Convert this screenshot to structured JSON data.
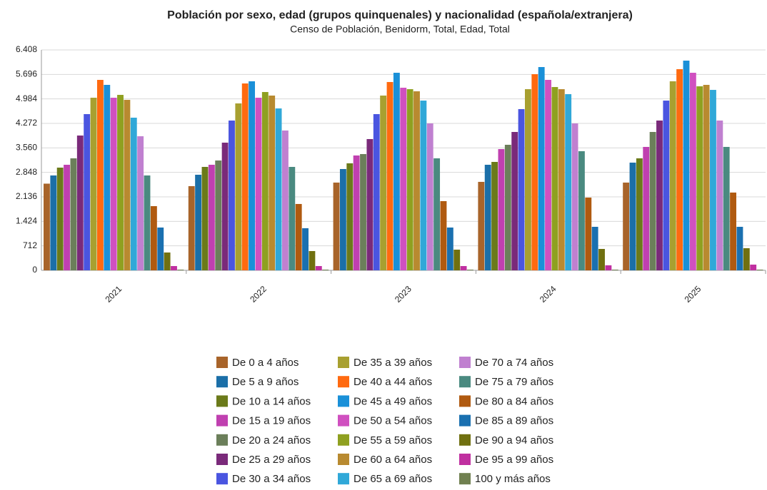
{
  "chart_data": {
    "type": "bar",
    "title": "Población por sexo, edad (grupos quinquenales) y nacionalidad (española/extranjera)",
    "subtitle": "Censo de Población, Benidorm, Total, Edad, Total",
    "categories": [
      "2021",
      "2022",
      "2023",
      "2024",
      "2025"
    ],
    "ylim": [
      0,
      6408
    ],
    "yticks": [
      0,
      712,
      {
        "value": 1424,
        "label": "1.424"
      },
      {
        "value": 2136,
        "label": "2.136"
      },
      {
        "value": 2848,
        "label": "2.848"
      },
      {
        "value": 3560,
        "label": "3.560"
      },
      {
        "value": 4272,
        "label": "4.272"
      },
      {
        "value": 4984,
        "label": "4.984"
      },
      {
        "value": 5696,
        "label": "5.696"
      },
      {
        "value": 6408,
        "label": "6.408"
      }
    ],
    "grid": true,
    "series": [
      {
        "name": "De 0 a 4 años",
        "color": "#a8642a",
        "values": [
          2520,
          2447,
          2551,
          2572,
          2551
        ]
      },
      {
        "name": "De 5 a 9 años",
        "color": "#1b6fa8",
        "values": [
          2758,
          2779,
          2945,
          3069,
          3131
        ]
      },
      {
        "name": "De 10 a 14 años",
        "color": "#6b7a1a",
        "values": [
          2986,
          3007,
          3111,
          3152,
          3256
        ]
      },
      {
        "name": "De 15 a 19 años",
        "color": "#c040b0",
        "values": [
          3069,
          3069,
          3339,
          3525,
          3588
        ]
      },
      {
        "name": "De 20 a 24 años",
        "color": "#6b7f5a",
        "values": [
          3256,
          3193,
          3380,
          3650,
          4023
        ]
      },
      {
        "name": "De 25 a 29 años",
        "color": "#7a2a7a",
        "values": [
          3919,
          3712,
          3816,
          4023,
          4355
        ]
      },
      {
        "name": "De 30 a 34 años",
        "color": "#4a55e0",
        "values": [
          4542,
          4355,
          4542,
          4687,
          4935
        ]
      },
      {
        "name": "De 35 a 39 años",
        "color": "#a8a030",
        "values": [
          5018,
          4853,
          5081,
          5267,
          5496
        ]
      },
      {
        "name": "De 40 a 44 años",
        "color": "#ff6a10",
        "values": [
          5537,
          5433,
          5475,
          5703,
          5848
        ]
      },
      {
        "name": "De 45 a 49 años",
        "color": "#1a90d8",
        "values": [
          5392,
          5496,
          5744,
          5910,
          6097
        ]
      },
      {
        "name": "De 50 a 54 años",
        "color": "#d050c0",
        "values": [
          5018,
          5018,
          5309,
          5537,
          5744
        ]
      },
      {
        "name": "De 55 a 59 años",
        "color": "#8fa020",
        "values": [
          5101,
          5184,
          5267,
          5329,
          5350
        ]
      },
      {
        "name": "De 60 a 64 años",
        "color": "#b88a30",
        "values": [
          4956,
          5081,
          5205,
          5267,
          5392
        ]
      },
      {
        "name": "De 65 a 69 años",
        "color": "#30a8d8",
        "values": [
          4438,
          4707,
          4935,
          5122,
          5246
        ]
      },
      {
        "name": "De 70 a 74 años",
        "color": "#c080d0",
        "values": [
          3898,
          4065,
          4272,
          4272,
          4355
        ]
      },
      {
        "name": "De 75 a 79 años",
        "color": "#4a8a80",
        "values": [
          2758,
          3007,
          3256,
          3463,
          3588
        ]
      },
      {
        "name": "De 80 a 84 años",
        "color": "#b05a10",
        "values": [
          1866,
          1929,
          2012,
          2115,
          2261
        ]
      },
      {
        "name": "De 85 a 89 años",
        "color": "#1a70b0",
        "values": [
          1244,
          1224,
          1244,
          1265,
          1265
        ]
      },
      {
        "name": "De 90 a 94 años",
        "color": "#707010",
        "values": [
          518,
          560,
          601,
          622,
          643
        ]
      },
      {
        "name": "De 95 a 99 años",
        "color": "#c030a0",
        "values": [
          124,
          124,
          124,
          145,
          166
        ]
      },
      {
        "name": "100 y más años",
        "color": "#708050",
        "values": [
          20,
          20,
          20,
          20,
          20
        ]
      }
    ]
  }
}
